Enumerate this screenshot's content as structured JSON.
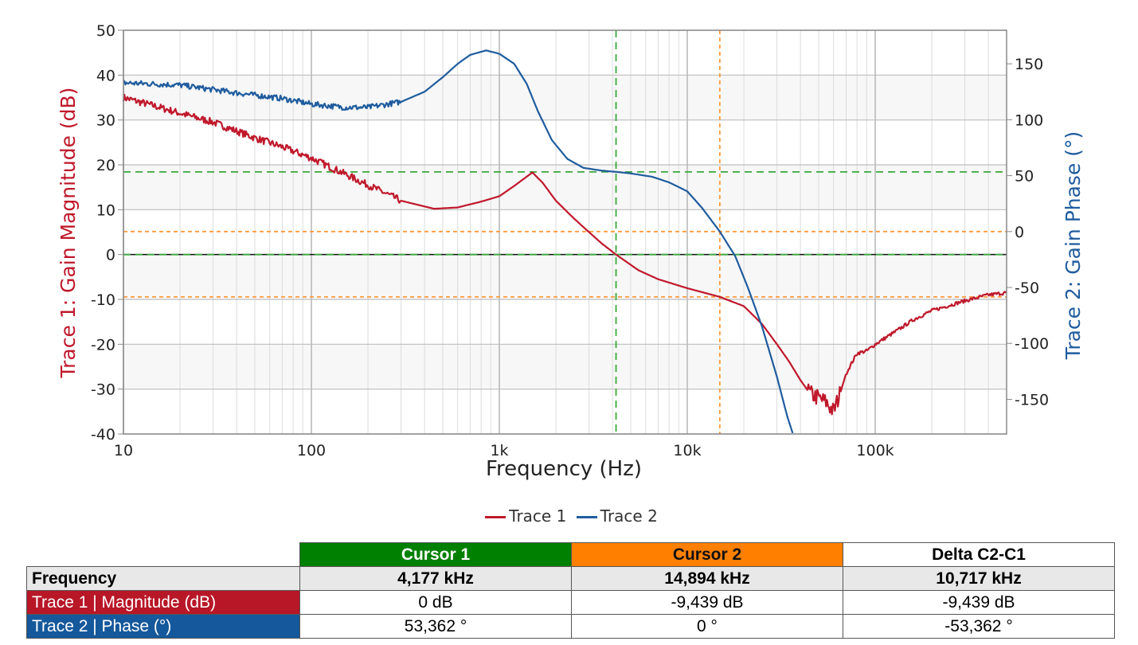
{
  "chart_data": {
    "type": "line",
    "xlabel": "Frequency (Hz)",
    "ylabel_left": "Trace 1: Gain Magnitude (dB)",
    "ylabel_right": "Trace 2: Gain Phase (°)",
    "xscale": "log",
    "xlim": [
      10,
      500000
    ],
    "ylim_left": [
      -40,
      50
    ],
    "ylim_right": [
      -181,
      180
    ],
    "x_ticks": [
      {
        "v": 10,
        "label": "10"
      },
      {
        "v": 100,
        "label": "100"
      },
      {
        "v": 1000,
        "label": "1k"
      },
      {
        "v": 10000,
        "label": "10k"
      },
      {
        "v": 100000,
        "label": "100k"
      }
    ],
    "y_ticks_left": [
      50,
      40,
      30,
      20,
      10,
      0,
      -10,
      -20,
      -30,
      -40
    ],
    "y_ticks_right": [
      150,
      100,
      50,
      0,
      -50,
      -100,
      -150
    ],
    "grid": true,
    "legend_position": "bottom-center",
    "series": [
      {
        "name": "Trace 1",
        "axis": "left",
        "color": "#c0182b",
        "points": [
          [
            10,
            35
          ],
          [
            15,
            33
          ],
          [
            20,
            31.5
          ],
          [
            30,
            29.5
          ],
          [
            50,
            26
          ],
          [
            70,
            24
          ],
          [
            100,
            21.5
          ],
          [
            150,
            18
          ],
          [
            200,
            15.5
          ],
          [
            300,
            12
          ],
          [
            450,
            10.2
          ],
          [
            600,
            10.5
          ],
          [
            800,
            11.8
          ],
          [
            1000,
            13
          ],
          [
            1200,
            15.3
          ],
          [
            1500,
            18.3
          ],
          [
            1700,
            16
          ],
          [
            2000,
            12
          ],
          [
            2500,
            8
          ],
          [
            3000,
            5
          ],
          [
            3500,
            2.5
          ],
          [
            4177,
            0
          ],
          [
            5500,
            -3.5
          ],
          [
            7000,
            -5.5
          ],
          [
            10000,
            -7.5
          ],
          [
            14894,
            -9.44
          ],
          [
            20000,
            -11.5
          ],
          [
            25000,
            -15.5
          ],
          [
            30000,
            -20
          ],
          [
            35000,
            -24
          ],
          [
            40000,
            -28
          ],
          [
            45000,
            -31
          ],
          [
            50000,
            -32
          ],
          [
            55000,
            -33
          ],
          [
            60000,
            -35
          ],
          [
            65000,
            -31
          ],
          [
            70000,
            -26.5
          ],
          [
            80000,
            -22
          ],
          [
            90000,
            -21.5
          ],
          [
            100000,
            -20
          ],
          [
            130000,
            -17
          ],
          [
            160000,
            -14.5
          ],
          [
            200000,
            -12.5
          ],
          [
            250000,
            -11.3
          ],
          [
            300000,
            -10.3
          ],
          [
            400000,
            -9
          ],
          [
            500000,
            -8.5
          ]
        ]
      },
      {
        "name": "Trace 2",
        "axis": "right",
        "color": "#1f5c9e",
        "points": [
          [
            10,
            133
          ],
          [
            20,
            131
          ],
          [
            40,
            124
          ],
          [
            70,
            119
          ],
          [
            100,
            114
          ],
          [
            150,
            111
          ],
          [
            200,
            111
          ],
          [
            300,
            116
          ],
          [
            400,
            125
          ],
          [
            500,
            138
          ],
          [
            600,
            150
          ],
          [
            700,
            158
          ],
          [
            850,
            162
          ],
          [
            1000,
            159
          ],
          [
            1200,
            150
          ],
          [
            1400,
            132
          ],
          [
            1600,
            108
          ],
          [
            1900,
            82
          ],
          [
            2300,
            65
          ],
          [
            2800,
            57
          ],
          [
            3500,
            54.5
          ],
          [
            4177,
            53.4
          ],
          [
            5000,
            52
          ],
          [
            6500,
            49
          ],
          [
            8000,
            44
          ],
          [
            10000,
            36
          ],
          [
            12000,
            21
          ],
          [
            14894,
            0
          ],
          [
            18000,
            -22
          ],
          [
            21000,
            -50
          ],
          [
            25000,
            -85
          ],
          [
            30000,
            -130
          ],
          [
            34000,
            -165
          ],
          [
            36500,
            -181
          ]
        ]
      }
    ],
    "cursors": [
      {
        "name": "Cursor 1",
        "color": "#3aa83a",
        "freq": 4177,
        "mag": 0,
        "phase": 53.362
      },
      {
        "name": "Cursor 2",
        "color": "#ff9a3c",
        "freq": 14894,
        "mag": -9.439,
        "phase": 0
      }
    ]
  },
  "legend": {
    "trace1": "Trace 1",
    "trace2": "Trace 2"
  },
  "table": {
    "headers": [
      "Cursor 1",
      "Cursor 2",
      "Delta C2-C1"
    ],
    "rows": [
      {
        "label": "Frequency",
        "values": [
          "4,177 kHz",
          "14,894 kHz",
          "10,717 kHz"
        ]
      },
      {
        "label": "Trace 1 | Magnitude (dB)",
        "values": [
          "0 dB",
          "-9,439 dB",
          "-9,439 dB"
        ]
      },
      {
        "label": "Trace 2 | Phase (°)",
        "values": [
          "53,362 °",
          "0 °",
          "-53,362 °"
        ]
      }
    ],
    "colors": {
      "cursor1": "#008000",
      "cursor2": "#ff8000",
      "trace1": "#b81727",
      "trace2": "#15589b",
      "freq_row": "#e8e8e8"
    }
  }
}
